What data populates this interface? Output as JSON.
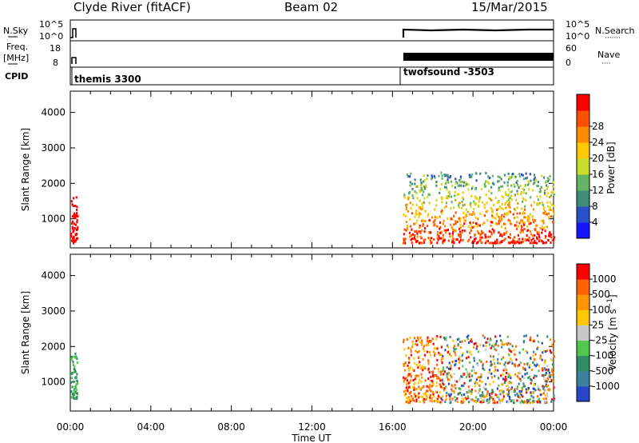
{
  "header": {
    "station": "Clyde River (fitACF)",
    "beam": "Beam 02",
    "date": "15/Mar/2015"
  },
  "params": {
    "nsky_label": "N.Sky",
    "nsky_ticks": [
      "10^5",
      "10^0"
    ],
    "nsearch_label": "N.Search",
    "freq_label_line1": "Freq.",
    "freq_label_line2": "[MHz]",
    "freq_ticks": [
      "18",
      "8"
    ],
    "nave_label": "Nave",
    "nave_ticks": [
      "60",
      "0"
    ],
    "cpid_label": "CPID",
    "cpid_segments": [
      "themis 3300",
      "twofsound -3503"
    ]
  },
  "chart_data": [
    {
      "type": "heatmap",
      "panel": "power",
      "ylabel": "Slant Range [km]",
      "xlabel": "",
      "yticks": [
        1000,
        2000,
        3000,
        4000
      ],
      "ylim": [
        180,
        4600
      ],
      "xlim_hours": [
        0,
        24
      ],
      "colorbar": {
        "label": "Power [dB]",
        "ticks": [
          "4",
          "8",
          "12",
          "16",
          "20",
          "24",
          "28"
        ],
        "colors": [
          "#1414ff",
          "#2850c8",
          "#3c8c78",
          "#64b464",
          "#c8dc28",
          "#ffc800",
          "#ff8c00",
          "#ff5000",
          "#ff0000"
        ]
      },
      "data_regions": [
        {
          "t_start": "00:00",
          "t_end": "00:20",
          "range_km": [
            300,
            1600
          ],
          "typical_value": "28+"
        },
        {
          "t_start": "16:30",
          "t_end": "24:00",
          "range_km": [
            300,
            2300
          ],
          "typical_value": "20-28"
        }
      ]
    },
    {
      "type": "heatmap",
      "panel": "velocity",
      "ylabel": "Slant Range [km]",
      "xlabel": "Time UT",
      "xticks": [
        "00:00",
        "04:00",
        "08:00",
        "12:00",
        "16:00",
        "20:00",
        "00:00"
      ],
      "yticks": [
        1000,
        2000,
        3000,
        4000
      ],
      "ylim": [
        180,
        4600
      ],
      "xlim_hours": [
        0,
        24
      ],
      "colorbar": {
        "label": "Velocity [m s^-1]",
        "ticks": [
          "1000",
          "500",
          "100",
          "25",
          "-25",
          "-100",
          "-500",
          "-1000"
        ],
        "colors": [
          "#2846c8",
          "#3c82a0",
          "#328c64",
          "#50c850",
          "#c8c8c8",
          "#ffc800",
          "#ff9600",
          "#ff6400",
          "#ff0000"
        ]
      },
      "data_regions": [
        {
          "t_start": "00:00",
          "t_end": "00:20",
          "range_km": [
            500,
            1800
          ],
          "typical_value": "0 to 100"
        },
        {
          "t_start": "16:30",
          "t_end": "24:00",
          "range_km": [
            400,
            2300
          ],
          "typical_value": "-500 to 500"
        }
      ]
    }
  ]
}
